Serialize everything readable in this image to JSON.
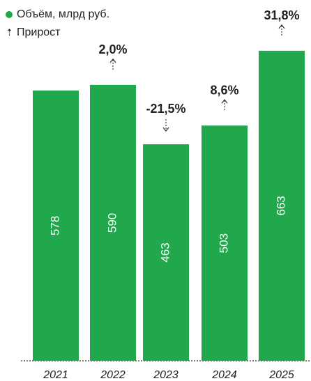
{
  "chart_data": {
    "type": "bar",
    "categories": [
      "2021",
      "2022",
      "2023",
      "2024",
      "2025"
    ],
    "series": [
      {
        "name": "Объём, млрд руб.",
        "values": [
          578,
          590,
          463,
          503,
          663
        ],
        "color": "#21a84c"
      }
    ],
    "growth": {
      "name": "Прирост",
      "labels": [
        "",
        "2,0%",
        "-21,5%",
        "8,6%",
        "31,8%"
      ],
      "direction": [
        "",
        "up",
        "down",
        "up",
        "up"
      ]
    },
    "ylim": [
      0,
      700
    ],
    "grid": false,
    "baseline_style": "dotted",
    "legend_position": "top-left"
  }
}
